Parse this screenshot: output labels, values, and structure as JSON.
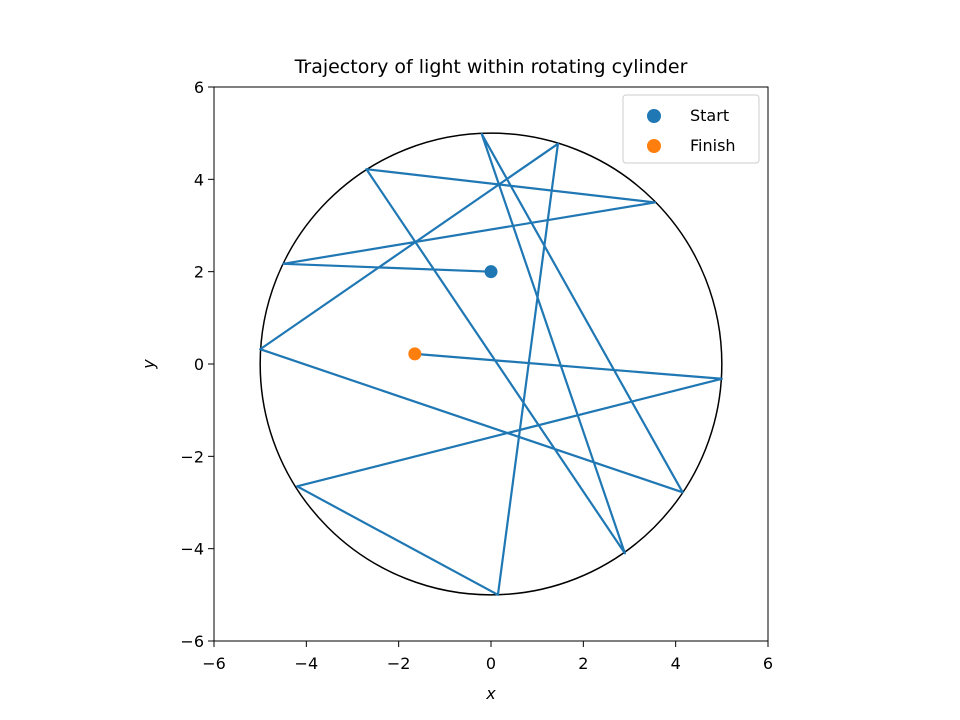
{
  "chart_data": {
    "type": "line",
    "title": "Trajectory of light within rotating cylinder",
    "xlabel": "x",
    "ylabel": "y",
    "xlim": [
      -6,
      6
    ],
    "ylim": [
      -6,
      6
    ],
    "xticks": [
      -6,
      -4,
      -2,
      0,
      2,
      4,
      6
    ],
    "yticks": [
      -6,
      -4,
      -2,
      0,
      2,
      4,
      6
    ],
    "xtick_labels": [
      "−6",
      "−4",
      "−2",
      "0",
      "2",
      "4",
      "6"
    ],
    "ytick_labels": [
      "−6",
      "−4",
      "−2",
      "0",
      "2",
      "4",
      "6"
    ],
    "grid": false,
    "aspect": "equal",
    "boundary_circle": {
      "center": [
        0,
        0
      ],
      "radius": 5,
      "color": "#000000"
    },
    "series": [
      {
        "type": "line",
        "color": "#1f77b4",
        "x": [
          0,
          -4.5,
          3.55,
          -2.7,
          2.9,
          -0.2,
          4.15,
          -5.0,
          1.45,
          0.15,
          -4.2,
          5.0,
          -1.65
        ],
        "y": [
          2,
          2.17,
          3.5,
          4.22,
          -4.1,
          4.98,
          -2.78,
          0.32,
          4.77,
          -5.0,
          -2.65,
          -0.32,
          0.22
        ]
      }
    ],
    "markers": [
      {
        "name": "Start",
        "x": 0,
        "y": 2,
        "color": "#1f77b4"
      },
      {
        "name": "Finish",
        "x": -1.65,
        "y": 0.22,
        "color": "#ff7f0e"
      }
    ],
    "legend": {
      "position": "upper-right",
      "entries": [
        {
          "label": "Start",
          "color": "#1f77b4"
        },
        {
          "label": "Finish",
          "color": "#ff7f0e"
        }
      ]
    }
  }
}
